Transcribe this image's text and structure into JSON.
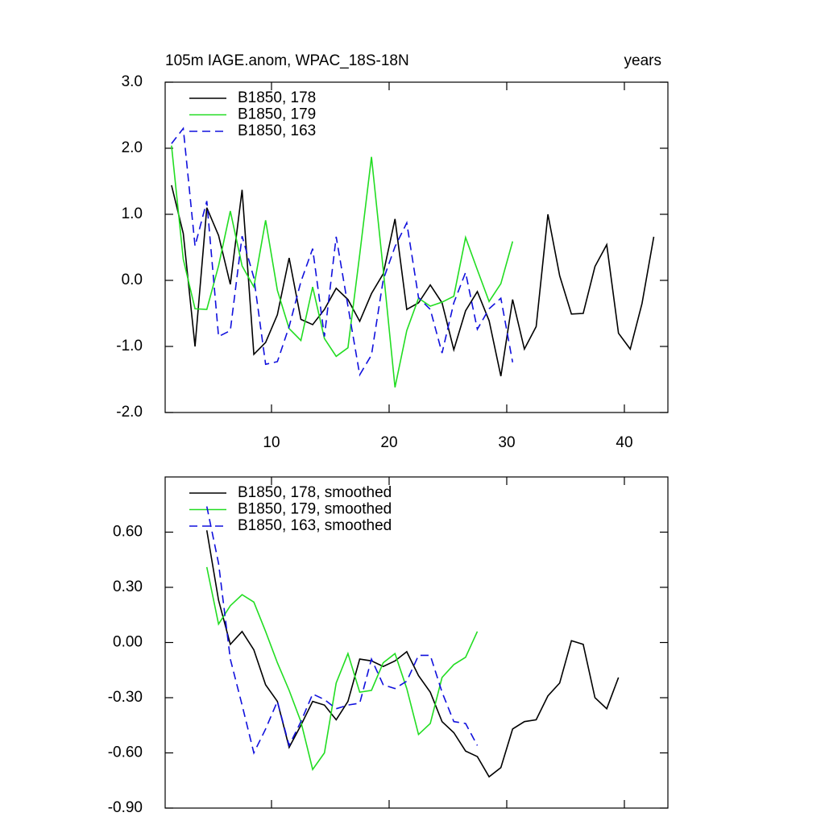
{
  "chart_data": [
    {
      "type": "line",
      "title": "105m IAGE.anom, WPAC_18S-18N",
      "title_right": "years",
      "xlim": [
        0.96,
        43.7
      ],
      "xticks": [
        10,
        20,
        30,
        40
      ],
      "ylim": [
        -2.0,
        3.0
      ],
      "yticks": [
        {
          "value": -2.0,
          "label": "-2.0"
        },
        {
          "value": -1.0,
          "label": "-1.0"
        },
        {
          "value": 0.0,
          "label": "0.0"
        },
        {
          "value": 1.0,
          "label": "1.0"
        },
        {
          "value": 2.0,
          "label": "2.0"
        },
        {
          "value": 3.0,
          "label": "3.0"
        }
      ],
      "legend": "upper left",
      "series": [
        {
          "name": "B1850, 178",
          "color": "#000000",
          "linestyle": "solid",
          "x": [
            1.5,
            2.5,
            3.5,
            4.5,
            5.5,
            6.5,
            7.5,
            8.5,
            9.5,
            10.5,
            11.5,
            12.5,
            13.5,
            14.5,
            15.5,
            16.5,
            17.5,
            18.5,
            19.5,
            20.5,
            21.5,
            22.5,
            23.5,
            24.5,
            25.5,
            26.5,
            27.5,
            28.5,
            29.5,
            30.5,
            31.5,
            32.5,
            33.5,
            34.5,
            35.5,
            36.5,
            37.5,
            38.5,
            39.5,
            40.5,
            41.5,
            42.5
          ],
          "values": [
            1.44,
            0.71,
            -1.0,
            1.1,
            0.68,
            -0.06,
            1.37,
            -1.12,
            -0.94,
            -0.52,
            0.34,
            -0.59,
            -0.67,
            -0.44,
            -0.12,
            -0.29,
            -0.62,
            -0.2,
            0.1,
            0.93,
            -0.44,
            -0.34,
            -0.07,
            -0.34,
            -1.05,
            -0.46,
            -0.17,
            -0.61,
            -1.45,
            -0.29,
            -1.04,
            -0.7,
            1.0,
            0.07,
            -0.51,
            -0.5,
            0.21,
            0.54,
            -0.8,
            -1.04,
            -0.35,
            0.66
          ]
        },
        {
          "name": "B1850, 179",
          "color": "#22dd22",
          "linestyle": "solid",
          "x": [
            1.5,
            2.5,
            3.5,
            4.5,
            5.5,
            6.5,
            7.5,
            8.5,
            9.5,
            10.5,
            11.5,
            12.5,
            13.5,
            14.5,
            15.5,
            16.5,
            17.5,
            18.5,
            19.5,
            20.5,
            21.5,
            22.5,
            23.5,
            24.5,
            25.5,
            26.5,
            27.5,
            28.5,
            29.5,
            30.5
          ],
          "values": [
            2.04,
            0.32,
            -0.43,
            -0.44,
            0.22,
            1.05,
            0.22,
            -0.1,
            0.91,
            -0.15,
            -0.73,
            -0.91,
            -0.1,
            -0.88,
            -1.15,
            -1.02,
            0.39,
            1.87,
            0.16,
            -1.62,
            -0.76,
            -0.27,
            -0.39,
            -0.33,
            -0.24,
            0.65,
            0.16,
            -0.32,
            -0.05,
            0.59
          ]
        },
        {
          "name": "B1850, 163",
          "color": "#1010dd",
          "linestyle": "dashed",
          "x": [
            1.5,
            2.5,
            3.5,
            4.5,
            5.5,
            6.5,
            7.5,
            8.5,
            9.5,
            10.5,
            11.5,
            12.5,
            13.5,
            14.5,
            15.5,
            16.5,
            17.5,
            18.5,
            19.5,
            20.5,
            21.5,
            22.5,
            23.5,
            24.5,
            25.5,
            26.5,
            27.5,
            28.5,
            29.5,
            30.5
          ],
          "values": [
            2.07,
            2.3,
            0.52,
            1.2,
            -0.85,
            -0.76,
            0.67,
            0.04,
            -1.27,
            -1.23,
            -0.7,
            -0.02,
            0.48,
            -0.85,
            0.66,
            -0.39,
            -1.43,
            -1.13,
            0.01,
            0.51,
            0.87,
            -0.26,
            -0.44,
            -1.1,
            -0.34,
            0.12,
            -0.74,
            -0.43,
            -0.27,
            -1.24
          ]
        }
      ]
    },
    {
      "type": "line",
      "xlim": [
        0.96,
        43.7
      ],
      "xticks": [
        {
          "value": 10,
          "label": null
        },
        {
          "value": 20,
          "label": null
        },
        {
          "value": 30,
          "label": null
        },
        {
          "value": 40,
          "label": null
        }
      ],
      "ylim": [
        -0.9,
        0.9
      ],
      "yticks": [
        {
          "value": -0.9,
          "label": "-0.90"
        },
        {
          "value": -0.6,
          "label": "-0.60"
        },
        {
          "value": -0.3,
          "label": "-0.30"
        },
        {
          "value": 0.0,
          "label": "0.00"
        },
        {
          "value": 0.3,
          "label": "0.30"
        },
        {
          "value": 0.6,
          "label": "0.60"
        }
      ],
      "legend": "upper left",
      "series": [
        {
          "name": "B1850, 178, smoothed",
          "color": "#000000",
          "linestyle": "solid",
          "x": [
            4.5,
            5.5,
            6.5,
            7.5,
            8.5,
            9.5,
            10.5,
            11.5,
            12.5,
            13.5,
            14.5,
            15.5,
            16.5,
            17.5,
            18.5,
            19.5,
            20.5,
            21.5,
            22.5,
            23.5,
            24.5,
            25.5,
            26.5,
            27.5,
            28.5,
            29.5,
            30.5,
            31.5,
            32.5,
            33.5,
            34.5,
            35.5,
            36.5,
            37.5,
            38.5,
            39.5
          ],
          "values": [
            0.61,
            0.23,
            -0.01,
            0.06,
            -0.04,
            -0.23,
            -0.32,
            -0.57,
            -0.45,
            -0.32,
            -0.34,
            -0.42,
            -0.32,
            -0.09,
            -0.1,
            -0.13,
            -0.1,
            -0.05,
            -0.18,
            -0.27,
            -0.43,
            -0.49,
            -0.59,
            -0.62,
            -0.73,
            -0.68,
            -0.47,
            -0.43,
            -0.42,
            -0.29,
            -0.22,
            0.01,
            -0.01,
            -0.3,
            -0.36,
            -0.19
          ]
        },
        {
          "name": "B1850, 179, smoothed",
          "color": "#22dd22",
          "linestyle": "solid",
          "x": [
            4.5,
            5.5,
            6.5,
            7.5,
            8.5,
            9.5,
            10.5,
            11.5,
            12.5,
            13.5,
            14.5,
            15.5,
            16.5,
            17.5,
            18.5,
            19.5,
            20.5,
            21.5,
            22.5,
            23.5,
            24.5,
            25.5,
            26.5,
            27.5
          ],
          "values": [
            0.41,
            0.1,
            0.2,
            0.26,
            0.22,
            0.06,
            -0.11,
            -0.26,
            -0.43,
            -0.69,
            -0.6,
            -0.22,
            -0.06,
            -0.27,
            -0.26,
            -0.11,
            -0.06,
            -0.25,
            -0.5,
            -0.44,
            -0.19,
            -0.12,
            -0.08,
            0.06
          ]
        },
        {
          "name": "B1850, 163, smoothed",
          "color": "#1010dd",
          "linestyle": "dashed",
          "x": [
            4.5,
            5.5,
            6.5,
            7.5,
            8.5,
            9.5,
            10.5,
            11.5,
            12.5,
            13.5,
            14.5,
            15.5,
            16.5,
            17.5,
            18.5,
            19.5,
            20.5,
            21.5,
            22.5,
            23.5,
            24.5,
            25.5,
            26.5,
            27.5
          ],
          "values": [
            0.74,
            0.43,
            -0.09,
            -0.34,
            -0.6,
            -0.47,
            -0.32,
            -0.56,
            -0.43,
            -0.28,
            -0.31,
            -0.36,
            -0.34,
            -0.33,
            -0.09,
            -0.23,
            -0.25,
            -0.21,
            -0.07,
            -0.07,
            -0.27,
            -0.43,
            -0.44,
            -0.56
          ]
        }
      ]
    }
  ]
}
